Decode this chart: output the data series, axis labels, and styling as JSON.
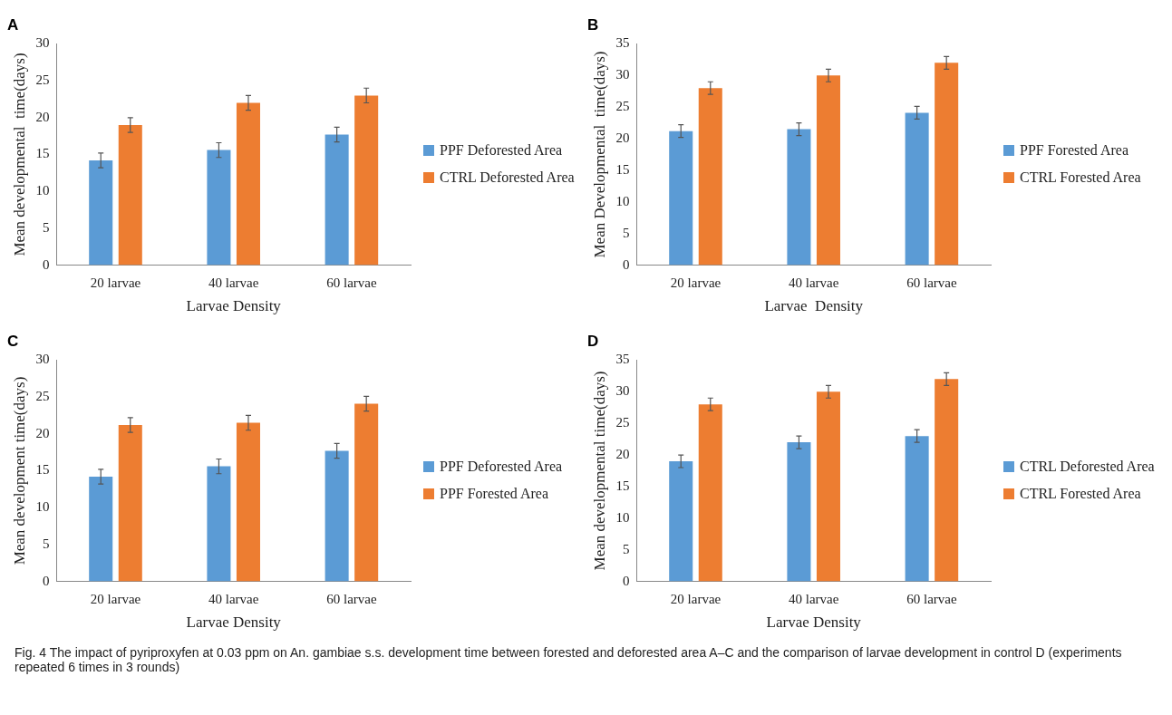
{
  "chart_data": [
    {
      "type": "bar",
      "title": "A",
      "xlabel": "Larvae Density",
      "ylabel": "Mean developmental  time(days)",
      "categories": [
        "20 larvae",
        "40 larvae",
        "60 larvae"
      ],
      "series": [
        {
          "name": "PPF Deforested Area",
          "color": "#5b9bd5",
          "values": [
            14.2,
            15.6,
            17.7
          ],
          "errors": [
            1,
            1,
            1
          ]
        },
        {
          "name": "CTRL Deforested Area",
          "color": "#ed7d31",
          "values": [
            19,
            22,
            23
          ],
          "errors": [
            1,
            1,
            1
          ]
        }
      ],
      "ylim": [
        0,
        30
      ],
      "yticks": [
        0,
        5,
        10,
        15,
        20,
        25,
        30
      ],
      "legend": "right"
    },
    {
      "type": "bar",
      "title": "B",
      "xlabel": "Larvae  Density",
      "ylabel": "Mean Developmental  time(days)",
      "categories": [
        "20 larvae",
        "40 larvae",
        "60 larvae"
      ],
      "series": [
        {
          "name": "PPF Forested Area",
          "color": "#5b9bd5",
          "values": [
            21.2,
            21.5,
            24.1
          ],
          "errors": [
            1,
            1,
            1
          ]
        },
        {
          "name": "CTRL Forested Area",
          "color": "#ed7d31",
          "values": [
            28,
            30,
            32
          ],
          "errors": [
            1,
            1,
            1
          ]
        }
      ],
      "ylim": [
        0,
        35
      ],
      "yticks": [
        0,
        5,
        10,
        15,
        20,
        25,
        30,
        35
      ],
      "legend": "right"
    },
    {
      "type": "bar",
      "title": "C",
      "xlabel": "Larvae Density",
      "ylabel": "Mean development time(days)",
      "categories": [
        "20 larvae",
        "40 larvae",
        "60 larvae"
      ],
      "series": [
        {
          "name": "PPF Deforested Area",
          "color": "#5b9bd5",
          "values": [
            14.2,
            15.6,
            17.7
          ],
          "errors": [
            1,
            1,
            1
          ]
        },
        {
          "name": "PPF Forested Area",
          "color": "#ed7d31",
          "values": [
            21.2,
            21.5,
            24.1
          ],
          "errors": [
            1,
            1,
            1
          ]
        }
      ],
      "ylim": [
        0,
        30
      ],
      "yticks": [
        0,
        5,
        10,
        15,
        20,
        25,
        30
      ],
      "legend": "right"
    },
    {
      "type": "bar",
      "title": "D",
      "xlabel": "Larvae Density",
      "ylabel": "Mean developmental time(days)",
      "categories": [
        "20 larvae",
        "40 larvae",
        "60 larvae"
      ],
      "series": [
        {
          "name": "CTRL Deforested Area",
          "color": "#5b9bd5",
          "values": [
            19,
            22,
            23
          ],
          "errors": [
            1,
            1,
            1
          ]
        },
        {
          "name": "CTRL Forested Area",
          "color": "#ed7d31",
          "values": [
            28,
            30,
            32
          ],
          "errors": [
            1,
            1,
            1
          ]
        }
      ],
      "ylim": [
        0,
        35
      ],
      "yticks": [
        0,
        5,
        10,
        15,
        20,
        25,
        30,
        35
      ],
      "legend": "right",
      "annotations": [
        "Fig. 4  The impact of pyriproxyfen at 0.03 ppm on An. gambiae s.s. development time between forested and deforested area A–C and the comparison of larvae development in control D (experiments repeated 6 times in 3 rounds)"
      ]
    }
  ]
}
